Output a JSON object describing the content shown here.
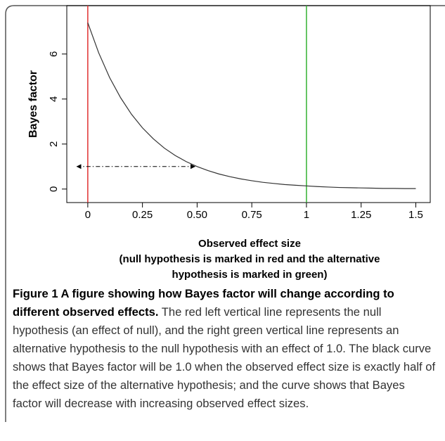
{
  "chart_data": {
    "type": "line",
    "ylabel": "Bayes factor",
    "xlabel": [
      "Observed effect size",
      "(null hypothesis is marked in red and the alternative",
      "hypothesis is marked in green)"
    ],
    "x": [
      0,
      0.05,
      0.1,
      0.15,
      0.2,
      0.25,
      0.3,
      0.35,
      0.4,
      0.45,
      0.5,
      0.55,
      0.6,
      0.65,
      0.7,
      0.75,
      0.8,
      0.85,
      0.9,
      0.95,
      1.0,
      1.05,
      1.1,
      1.15,
      1.2,
      1.25,
      1.3,
      1.35,
      1.4,
      1.45,
      1.5
    ],
    "series": [
      {
        "color": "#333333",
        "values": [
          7.39,
          6.05,
          4.95,
          4.06,
          3.32,
          2.72,
          2.23,
          1.82,
          1.49,
          1.22,
          1.0,
          0.82,
          0.67,
          0.55,
          0.45,
          0.37,
          0.3,
          0.25,
          0.2,
          0.17,
          0.14,
          0.11,
          0.09,
          0.07,
          0.06,
          0.05,
          0.04,
          0.03,
          0.03,
          0.02,
          0.02
        ]
      }
    ],
    "vlines": [
      {
        "x": 0,
        "color": "#e03131"
      },
      {
        "x": 1,
        "color": "#34b233"
      }
    ],
    "arrow": {
      "x": [
        -0.05,
        0.49
      ],
      "y": 1
    },
    "xlim": [
      -0.096,
      1.566
    ],
    "ylim": [
      -0.6,
      8.15
    ],
    "xticks": [
      0,
      0.25,
      {
        "value": 0.5,
        "label": "0.50"
      },
      0.75,
      1,
      1.25,
      1.5
    ],
    "yticks": [
      0,
      2,
      4,
      6
    ]
  },
  "caption": {
    "title": "Figure 1 A figure showing how Bayes factor will change according to different observed effects.",
    "text": "The red left vertical line represents the null hypothesis (an effect of null), and the right green vertical line represents an alternative hypothesis to the null hypothesis with an effect of 1.0. The black curve shows that Bayes factor will be 1.0 when the observed effect size is exactly half of the effect size of the alternative hypothesis; and the curve shows that Bayes factor will decrease with increasing observed effect sizes."
  }
}
